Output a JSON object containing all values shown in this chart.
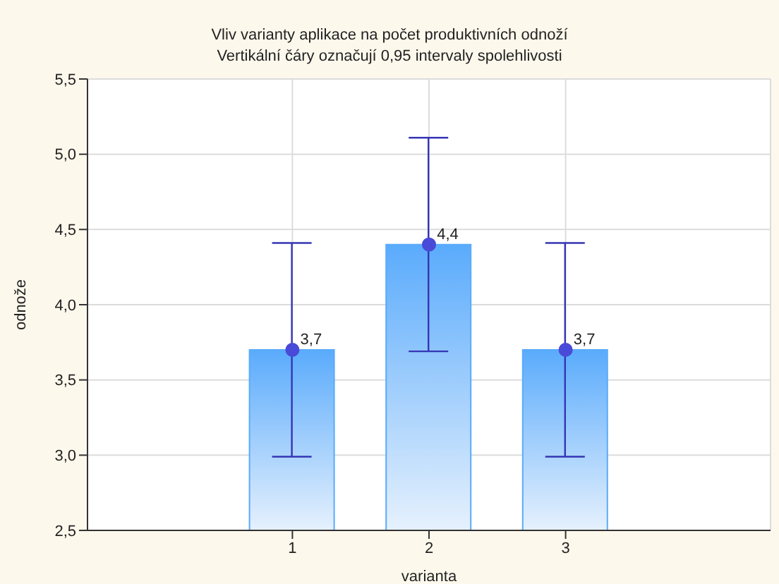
{
  "chart_data": {
    "type": "bar",
    "title": "Vliv varianty aplikace na počet produktivních odnoží",
    "subtitle": "Vertikální čáry označují 0,95 intervaly spolehlivosti",
    "xlabel": "varianta",
    "ylabel": "odnože",
    "categories": [
      "1",
      "2",
      "3"
    ],
    "series": [
      {
        "color": "#5aabfc",
        "values": [
          3.7,
          4.4,
          3.7
        ],
        "errors": [
          0.71,
          0.71,
          0.71
        ],
        "value_labels": [
          "3,7",
          "4,4",
          "3,7"
        ]
      },
      {
        "type": "scatter",
        "color": "#4a4ad8",
        "x": [
          "1",
          "2",
          "3"
        ],
        "values": [
          3.7,
          4.4,
          3.7
        ],
        "marker": "circle"
      }
    ],
    "ylim": [
      2.5,
      5.5
    ],
    "yticks": [
      {
        "value": 2.5,
        "label": "2,5"
      },
      {
        "value": 3.0,
        "label": "3,0"
      },
      {
        "value": 3.5,
        "label": "3,5"
      },
      {
        "value": 4.0,
        "label": "4,0"
      },
      {
        "value": 4.5,
        "label": "4,5"
      },
      {
        "value": 5.0,
        "label": "5,0"
      },
      {
        "value": 5.5,
        "label": "5,5"
      }
    ],
    "grid": true,
    "legend": false
  }
}
